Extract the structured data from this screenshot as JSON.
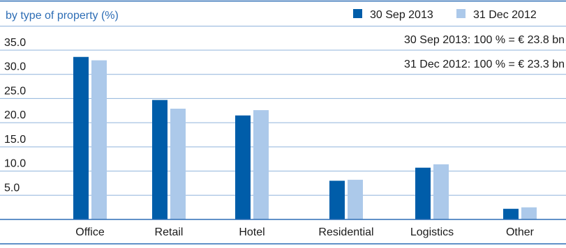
{
  "colors": {
    "accent": "#005DA9",
    "series_dark": "#005DA9",
    "series_light": "#ACC9EA",
    "rule": "#2D6DB5",
    "grid": "#8FB3DB",
    "text": "#1a1a1a"
  },
  "chart_data": {
    "type": "bar",
    "title": "by type of property (%)",
    "categories": [
      "Office",
      "Retail",
      "Hotel",
      "Residential",
      "Logistics",
      "Other"
    ],
    "series": [
      {
        "name": "30 Sep 2013",
        "values": [
          33.6,
          24.7,
          21.5,
          8.0,
          10.7,
          2.2
        ]
      },
      {
        "name": "31 Dec 2012",
        "values": [
          32.9,
          22.9,
          22.6,
          8.2,
          11.4,
          2.5
        ]
      }
    ],
    "yticks": [
      "35.0",
      "30.0",
      "25.0",
      "20.0",
      "15.0",
      "10.0",
      "5.0"
    ],
    "ylim": [
      0,
      35
    ],
    "legend_position": "top-right",
    "notes": [
      "30 Sep 2013: 100 % = € 23.8 bn",
      "31 Dec 2012: 100 % = € 23.3 bn"
    ],
    "grid": true
  }
}
